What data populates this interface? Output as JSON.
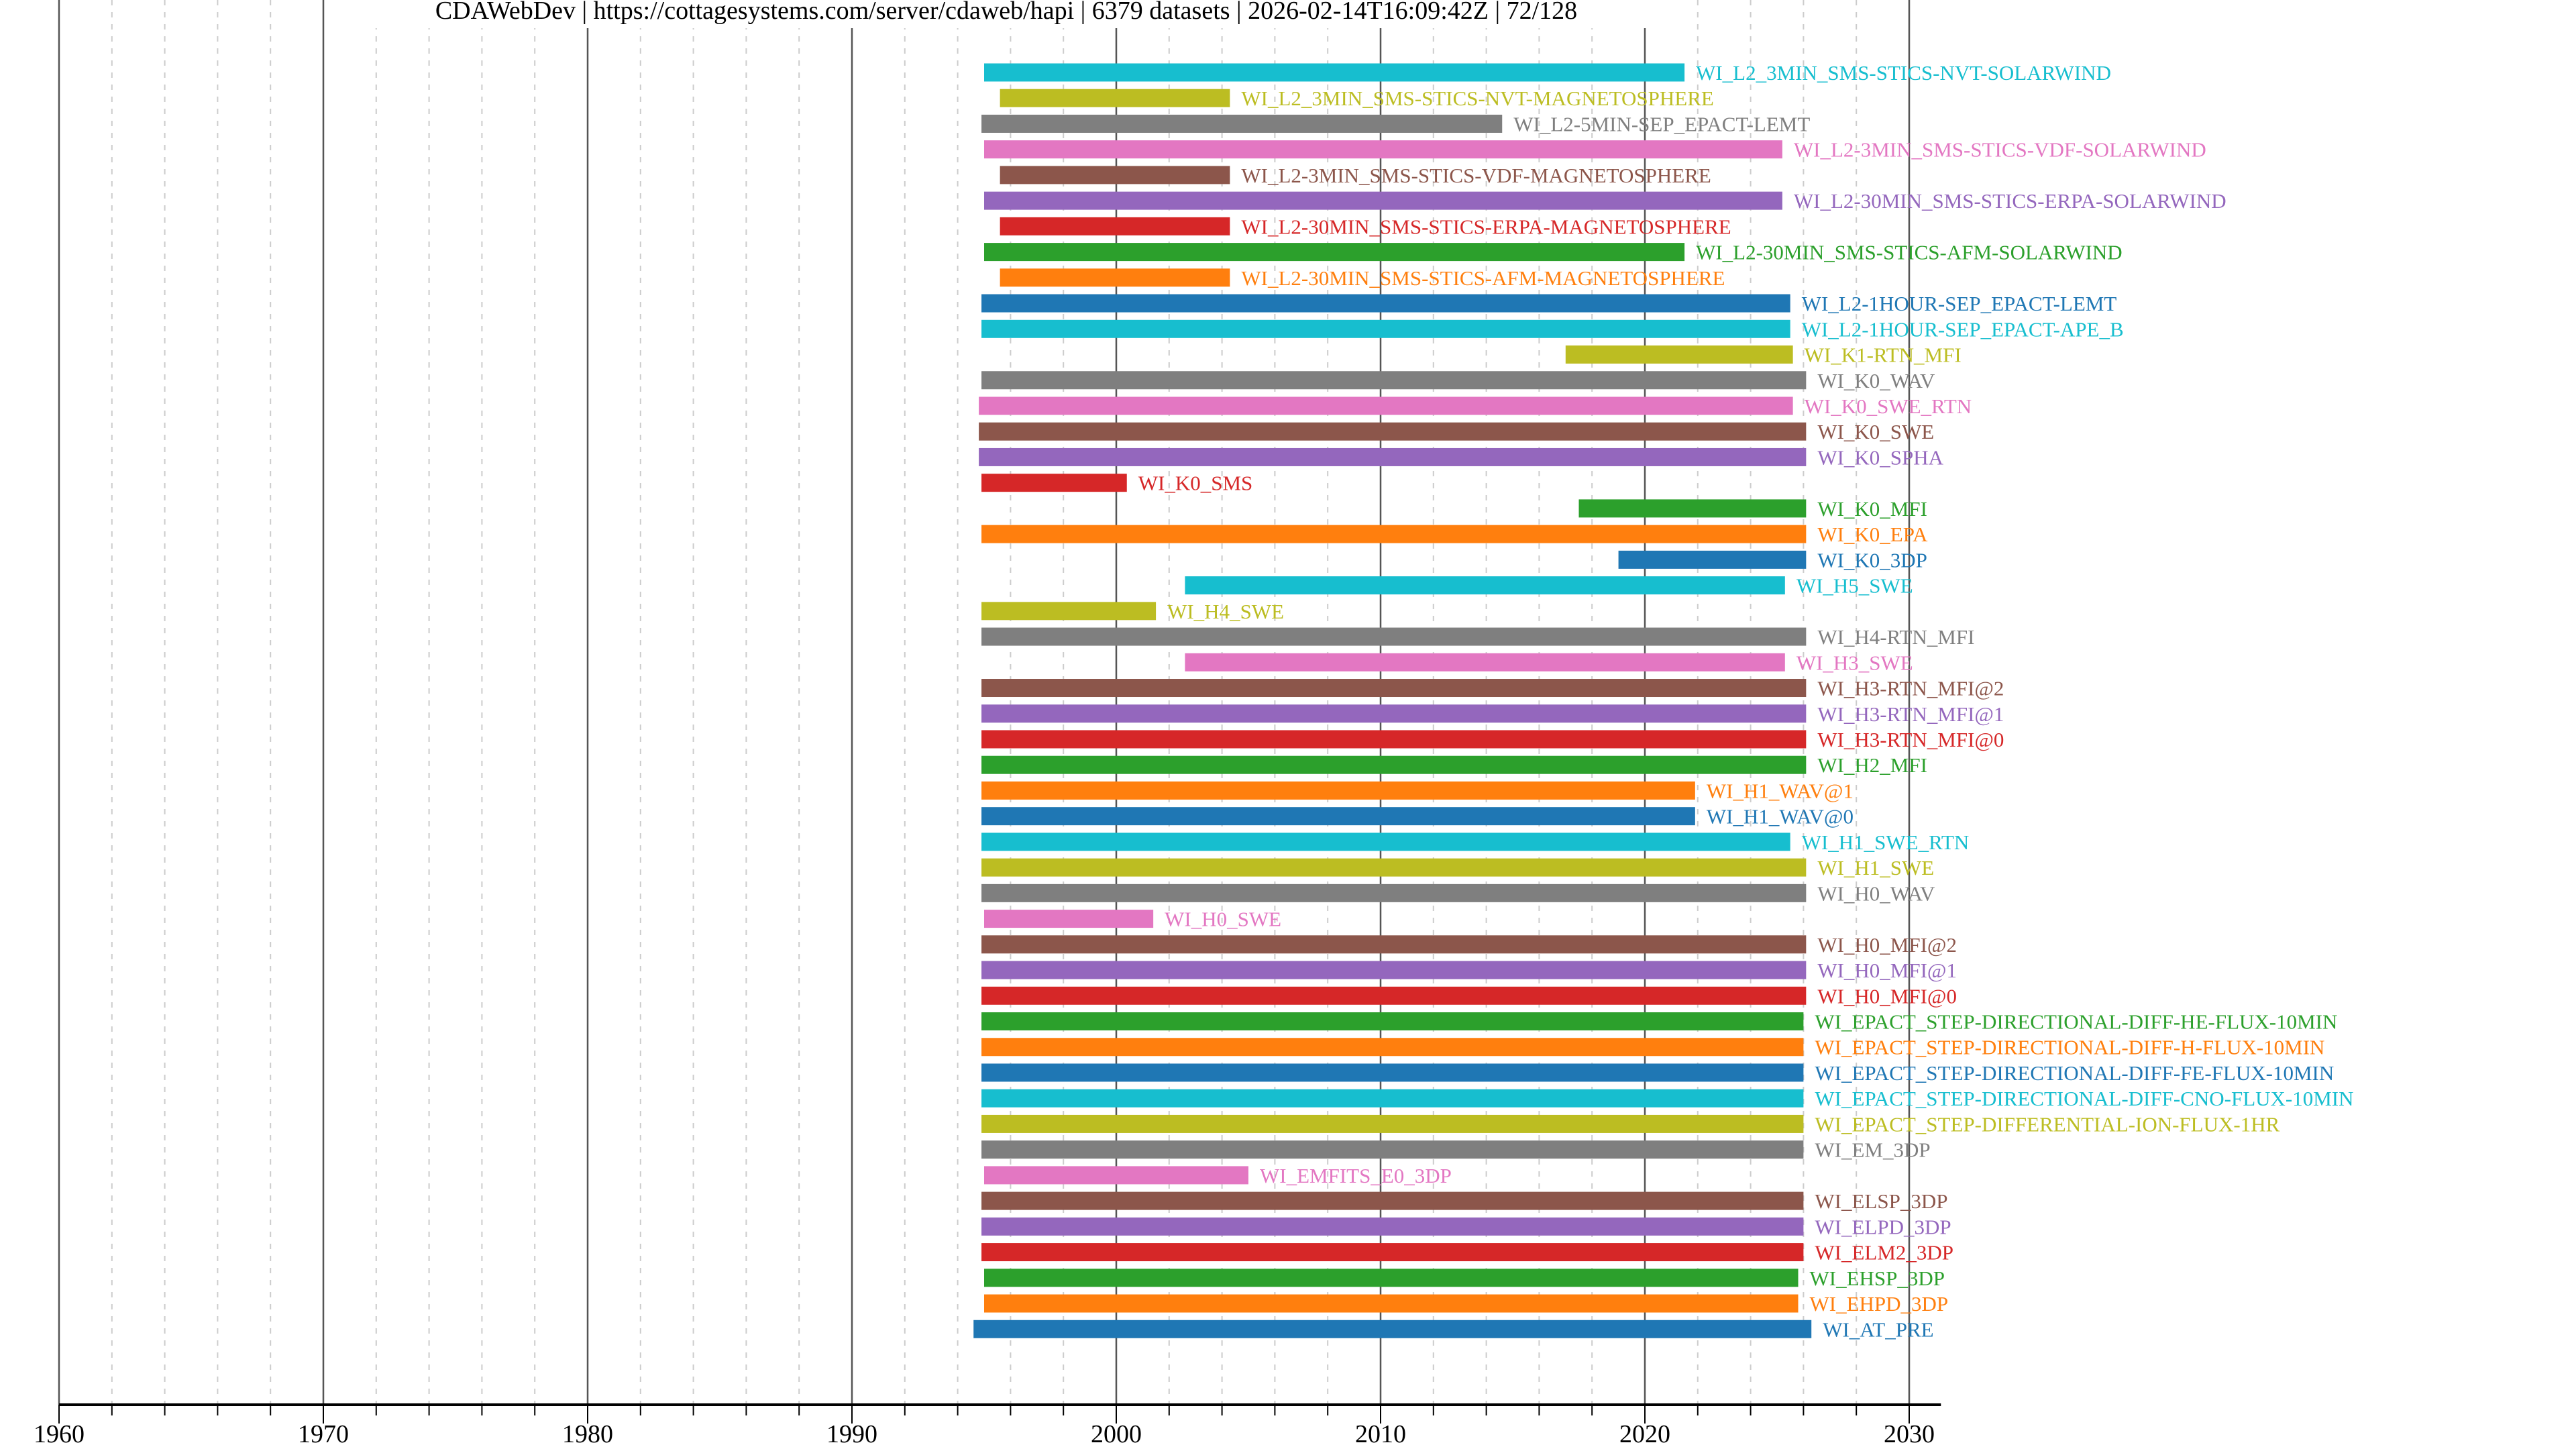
{
  "chart_data": {
    "type": "bar",
    "orientation": "horizontal-timeline",
    "title": "CDAWebDev | https://cottagesystems.com/server/cdaweb/hapi | 6379 datasets | 2026-02-14T16:09:42Z | 72/128",
    "xlabel": "",
    "ylabel": "",
    "xlim": [
      1960,
      2031.2
    ],
    "x_ticks": [
      "1960",
      "1970",
      "1980",
      "1990",
      "2000",
      "2010",
      "2020",
      "2030"
    ],
    "grid": {
      "major": "every 10 years, solid",
      "minor": "every 2 years, dashed"
    },
    "palette": [
      "#1f77b4",
      "#ff7f0e",
      "#2ca02c",
      "#d62728",
      "#9467bd",
      "#8c564b",
      "#e377c2",
      "#7f7f7f",
      "#bcbd22",
      "#17becf"
    ],
    "datasets": [
      {
        "name": "WI_L2_3MIN_SMS-STICS-NVT-SOLARWIND",
        "start": 1995.0,
        "stop": 2021.5
      },
      {
        "name": "WI_L2_3MIN_SMS-STICS-NVT-MAGNETOSPHERE",
        "start": 1995.6,
        "stop": 2004.3
      },
      {
        "name": "WI_L2-5MIN-SEP_EPACT-LEMT",
        "start": 1994.9,
        "stop": 2014.6
      },
      {
        "name": "WI_L2-3MIN_SMS-STICS-VDF-SOLARWIND",
        "start": 1995.0,
        "stop": 2025.2
      },
      {
        "name": "WI_L2-3MIN_SMS-STICS-VDF-MAGNETOSPHERE",
        "start": 1995.6,
        "stop": 2004.3
      },
      {
        "name": "WI_L2-30MIN_SMS-STICS-ERPA-SOLARWIND",
        "start": 1995.0,
        "stop": 2025.2
      },
      {
        "name": "WI_L2-30MIN_SMS-STICS-ERPA-MAGNETOSPHERE",
        "start": 1995.6,
        "stop": 2004.3
      },
      {
        "name": "WI_L2-30MIN_SMS-STICS-AFM-SOLARWIND",
        "start": 1995.0,
        "stop": 2021.5
      },
      {
        "name": "WI_L2-30MIN_SMS-STICS-AFM-MAGNETOSPHERE",
        "start": 1995.6,
        "stop": 2004.3
      },
      {
        "name": "WI_L2-1HOUR-SEP_EPACT-LEMT",
        "start": 1994.9,
        "stop": 2025.5
      },
      {
        "name": "WI_L2-1HOUR-SEP_EPACT-APE_B",
        "start": 1994.9,
        "stop": 2025.5
      },
      {
        "name": "WI_K1-RTN_MFI",
        "start": 2017.0,
        "stop": 2025.6
      },
      {
        "name": "WI_K0_WAV",
        "start": 1994.9,
        "stop": 2026.1
      },
      {
        "name": "WI_K0_SWE_RTN",
        "start": 1994.8,
        "stop": 2025.6
      },
      {
        "name": "WI_K0_SWE",
        "start": 1994.8,
        "stop": 2026.1
      },
      {
        "name": "WI_K0_SPHA",
        "start": 1994.8,
        "stop": 2026.1
      },
      {
        "name": "WI_K0_SMS",
        "start": 1994.9,
        "stop": 2000.4
      },
      {
        "name": "WI_K0_MFI",
        "start": 2017.5,
        "stop": 2026.1
      },
      {
        "name": "WI_K0_EPA",
        "start": 1994.9,
        "stop": 2026.1
      },
      {
        "name": "WI_K0_3DP",
        "start": 2019.0,
        "stop": 2026.1
      },
      {
        "name": "WI_H5_SWE",
        "start": 2002.6,
        "stop": 2025.3
      },
      {
        "name": "WI_H4_SWE",
        "start": 1994.9,
        "stop": 2001.5
      },
      {
        "name": "WI_H4-RTN_MFI",
        "start": 1994.9,
        "stop": 2026.1
      },
      {
        "name": "WI_H3_SWE",
        "start": 2002.6,
        "stop": 2025.3
      },
      {
        "name": "WI_H3-RTN_MFI@2",
        "start": 1994.9,
        "stop": 2026.1
      },
      {
        "name": "WI_H3-RTN_MFI@1",
        "start": 1994.9,
        "stop": 2026.1
      },
      {
        "name": "WI_H3-RTN_MFI@0",
        "start": 1994.9,
        "stop": 2026.1
      },
      {
        "name": "WI_H2_MFI",
        "start": 1994.9,
        "stop": 2026.1
      },
      {
        "name": "WI_H1_WAV@1",
        "start": 1994.9,
        "stop": 2021.9
      },
      {
        "name": "WI_H1_WAV@0",
        "start": 1994.9,
        "stop": 2021.9
      },
      {
        "name": "WI_H1_SWE_RTN",
        "start": 1994.9,
        "stop": 2025.5
      },
      {
        "name": "WI_H1_SWE",
        "start": 1994.9,
        "stop": 2026.1
      },
      {
        "name": "WI_H0_WAV",
        "start": 1994.9,
        "stop": 2026.1
      },
      {
        "name": "WI_H0_SWE",
        "start": 1995.0,
        "stop": 2001.4
      },
      {
        "name": "WI_H0_MFI@2",
        "start": 1994.9,
        "stop": 2026.1
      },
      {
        "name": "WI_H0_MFI@1",
        "start": 1994.9,
        "stop": 2026.1
      },
      {
        "name": "WI_H0_MFI@0",
        "start": 1994.9,
        "stop": 2026.1
      },
      {
        "name": "WI_EPACT_STEP-DIRECTIONAL-DIFF-HE-FLUX-10MIN",
        "start": 1994.9,
        "stop": 2026.0
      },
      {
        "name": "WI_EPACT_STEP-DIRECTIONAL-DIFF-H-FLUX-10MIN",
        "start": 1994.9,
        "stop": 2026.0
      },
      {
        "name": "WI_EPACT_STEP-DIRECTIONAL-DIFF-FE-FLUX-10MIN",
        "start": 1994.9,
        "stop": 2026.0
      },
      {
        "name": "WI_EPACT_STEP-DIRECTIONAL-DIFF-CNO-FLUX-10MIN",
        "start": 1994.9,
        "stop": 2026.0
      },
      {
        "name": "WI_EPACT_STEP-DIFFERENTIAL-ION-FLUX-1HR",
        "start": 1994.9,
        "stop": 2026.0
      },
      {
        "name": "WI_EM_3DP",
        "start": 1994.9,
        "stop": 2026.0
      },
      {
        "name": "WI_EMFITS_E0_3DP",
        "start": 1995.0,
        "stop": 2005.0
      },
      {
        "name": "WI_ELSP_3DP",
        "start": 1994.9,
        "stop": 2026.0
      },
      {
        "name": "WI_ELPD_3DP",
        "start": 1994.9,
        "stop": 2026.0
      },
      {
        "name": "WI_ELM2_3DP",
        "start": 1994.9,
        "stop": 2026.0
      },
      {
        "name": "WI_EHSP_3DP",
        "start": 1995.0,
        "stop": 2025.8
      },
      {
        "name": "WI_EHPD_3DP",
        "start": 1995.0,
        "stop": 2025.8
      },
      {
        "name": "WI_AT_PRE",
        "start": 1994.6,
        "stop": 2026.3
      }
    ]
  }
}
